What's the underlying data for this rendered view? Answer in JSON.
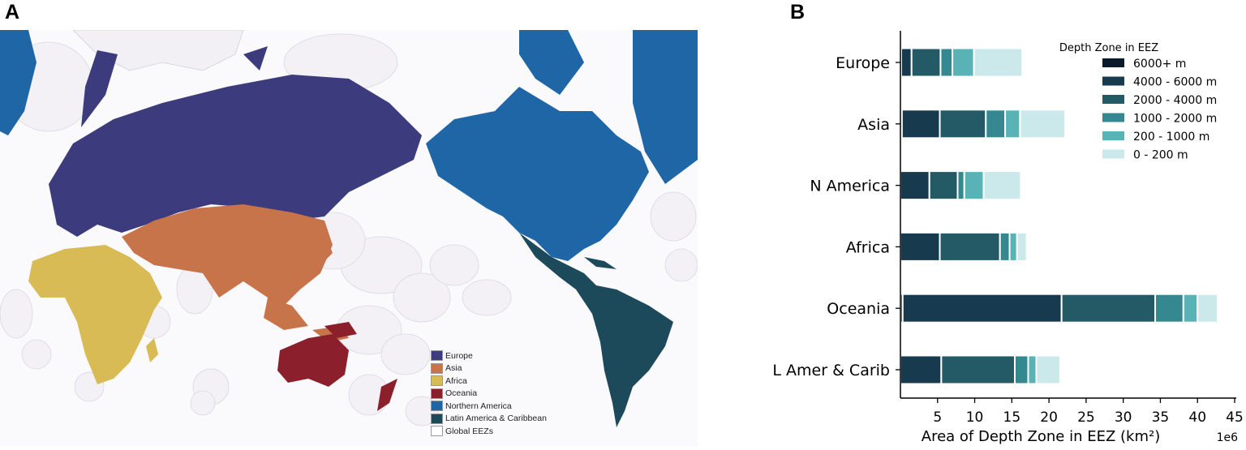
{
  "panels": {
    "a": "A",
    "b": "B"
  },
  "map": {
    "legend": [
      {
        "label": "Europe",
        "color": "#3b3b7e"
      },
      {
        "label": "Asia",
        "color": "#c8744a"
      },
      {
        "label": "Africa",
        "color": "#d9bb56"
      },
      {
        "label": "Oceania",
        "color": "#8b1f2c"
      },
      {
        "label": "Northern America",
        "color": "#1f66a7"
      },
      {
        "label": "Latin America & Caribbean",
        "color": "#1c4a5a"
      },
      {
        "label": "Global EEZs",
        "color": "#ffffff"
      }
    ]
  },
  "chart_data": {
    "type": "bar",
    "orientation": "horizontal",
    "stacked": true,
    "categories": [
      "Europe",
      "Asia",
      "N America",
      "Africa",
      "Oceania",
      "L Amer & Carib"
    ],
    "xlabel": "Area of Depth Zone in EEZ (km²)",
    "x_multiplier": "1e6",
    "xlim": [
      0,
      45
    ],
    "xticks": [
      5,
      10,
      15,
      20,
      25,
      30,
      35,
      40,
      45
    ],
    "legend_title": "Depth Zone in EEZ",
    "legend_position": "top-right",
    "series": [
      {
        "name": "6000+ m",
        "color": "#0b1a2a",
        "values": [
          0.1,
          0.2,
          0.0,
          0.0,
          0.3,
          0.0
        ]
      },
      {
        "name": "4000 - 6000 m",
        "color": "#183a4e",
        "values": [
          1.4,
          5.1,
          3.9,
          5.3,
          21.4,
          5.5
        ]
      },
      {
        "name": "2000 - 4000 m",
        "color": "#245a66",
        "values": [
          3.9,
          6.2,
          3.8,
          8.1,
          12.6,
          9.9
        ]
      },
      {
        "name": "1000 - 2000 m",
        "color": "#35888f",
        "values": [
          1.6,
          2.6,
          0.9,
          1.3,
          3.8,
          1.8
        ]
      },
      {
        "name": "200 - 1000 m",
        "color": "#59b3b6",
        "values": [
          2.9,
          2.0,
          2.6,
          1.0,
          1.9,
          1.1
        ]
      },
      {
        "name": "0 - 200 m",
        "color": "#cbe8ea",
        "values": [
          6.5,
          6.1,
          5.0,
          1.3,
          2.7,
          3.2
        ]
      }
    ]
  }
}
